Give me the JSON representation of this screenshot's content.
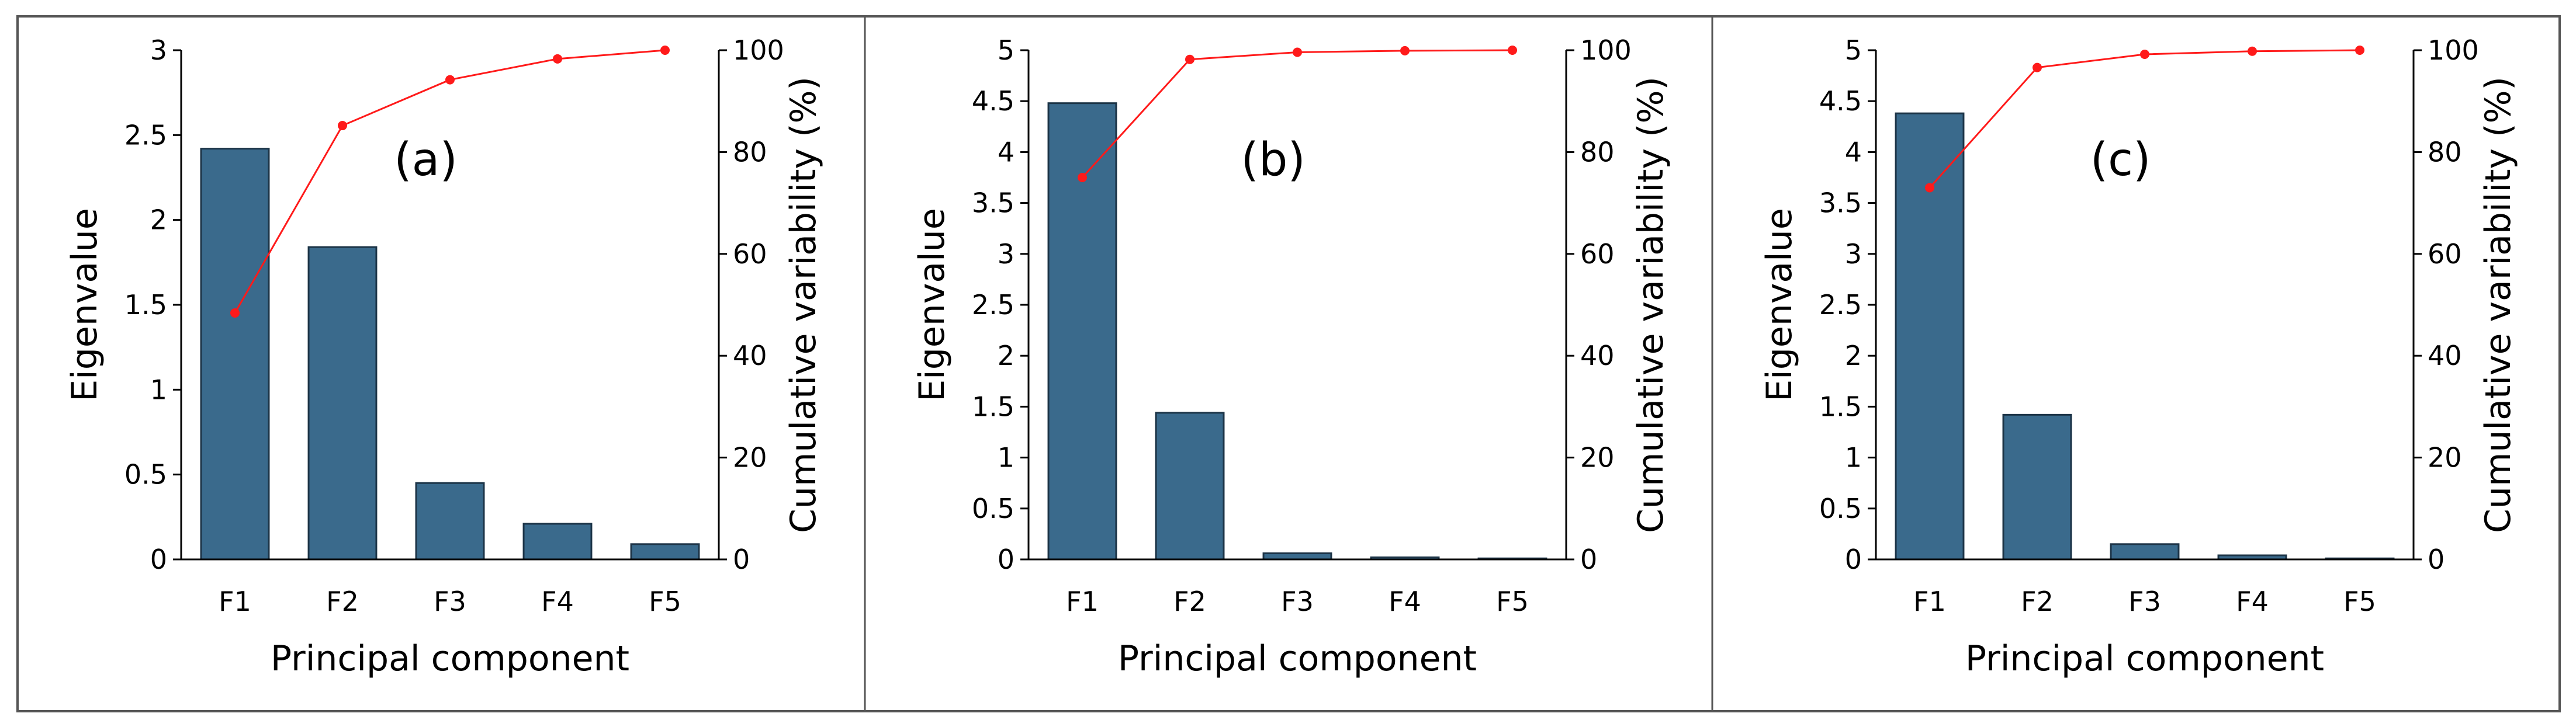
{
  "chart_data": [
    {
      "type": "bar",
      "panel_label": "(a)",
      "categories": [
        "F1",
        "F2",
        "F3",
        "F4",
        "F5"
      ],
      "series": [
        {
          "values": [
            2.42,
            1.84,
            0.45,
            0.21,
            0.09
          ],
          "axis": "left",
          "kind": "bar"
        },
        {
          "values": [
            48.4,
            85.2,
            94.2,
            98.3,
            100
          ],
          "axis": "right",
          "kind": "line"
        }
      ],
      "xlabel": "Principal component",
      "ylabel": "Eigenvalue",
      "y2label": "Cumulative variability (%)",
      "ylim": [
        0,
        3
      ],
      "yticks": [
        "0",
        "0.5",
        "1",
        "1.5",
        "2",
        "2.5",
        "3"
      ],
      "y2lim": [
        0,
        100
      ],
      "y2ticks": [
        "0",
        "20",
        "40",
        "60",
        "80",
        "100"
      ],
      "grid": false,
      "legend": "none"
    },
    {
      "type": "bar",
      "panel_label": "(b)",
      "categories": [
        "F1",
        "F2",
        "F3",
        "F4",
        "F5"
      ],
      "series": [
        {
          "values": [
            4.48,
            1.44,
            0.06,
            0.02,
            0.01
          ],
          "axis": "left",
          "kind": "bar"
        },
        {
          "values": [
            75,
            98.2,
            99.6,
            99.9,
            100
          ],
          "axis": "right",
          "kind": "line"
        }
      ],
      "xlabel": "Principal component",
      "ylabel": "Eigenvalue",
      "y2label": "Cumulative variability (%)",
      "ylim": [
        0,
        5
      ],
      "yticks": [
        "0",
        "0.5",
        "1",
        "1.5",
        "2",
        "2.5",
        "3",
        "3.5",
        "4",
        "4.5",
        "5"
      ],
      "y2lim": [
        0,
        100
      ],
      "y2ticks": [
        "0",
        "20",
        "40",
        "60",
        "80",
        "100"
      ],
      "grid": false,
      "legend": "none"
    },
    {
      "type": "bar",
      "panel_label": "(c)",
      "categories": [
        "F1",
        "F2",
        "F3",
        "F4",
        "F5"
      ],
      "series": [
        {
          "values": [
            4.38,
            1.42,
            0.15,
            0.04,
            0.01
          ],
          "axis": "left",
          "kind": "bar"
        },
        {
          "values": [
            73,
            96.6,
            99.2,
            99.8,
            100
          ],
          "axis": "right",
          "kind": "line"
        }
      ],
      "xlabel": "Principal component",
      "ylabel": "Eigenvalue",
      "y2label": "Cumulative variability (%)",
      "ylim": [
        0,
        5
      ],
      "yticks": [
        "0",
        "0.5",
        "1",
        "1.5",
        "2",
        "2.5",
        "3",
        "3.5",
        "4",
        "4.5",
        "5"
      ],
      "y2lim": [
        0,
        100
      ],
      "y2ticks": [
        "0",
        "20",
        "40",
        "60",
        "80",
        "100"
      ],
      "grid": false,
      "legend": "none"
    }
  ],
  "colors": {
    "bar_fill": "#3a6a8c",
    "bar_stroke": "#1c3447",
    "line": "#ff1a1a",
    "axis": "#000000",
    "frame": "#555555"
  }
}
